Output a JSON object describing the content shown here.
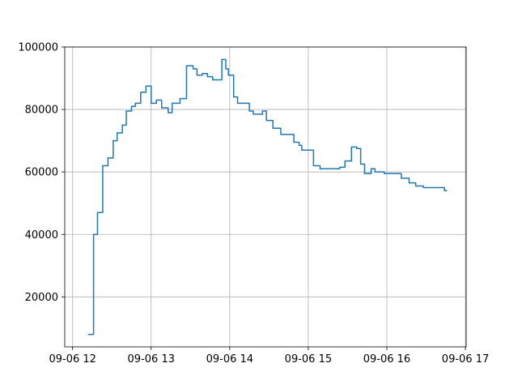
{
  "chart_data": {
    "type": "line",
    "title": "",
    "xlabel": "",
    "ylabel": "",
    "grid": true,
    "line_style": "steps-post",
    "xlim": [
      "2023-09-06 12:00",
      "2023-09-06 17:00"
    ],
    "ylim": [
      4000,
      100000
    ],
    "x_ticks": [
      "09-06 12",
      "09-06 13",
      "09-06 14",
      "09-06 15",
      "09-06 16",
      "09-06 17"
    ],
    "y_ticks": [
      "20000",
      "40000",
      "60000",
      "80000",
      "100000"
    ],
    "y_tick_values": [
      20000,
      40000,
      60000,
      80000,
      100000
    ],
    "colors": {
      "series": "#1f77b4"
    },
    "series": [
      {
        "x": [
          "2023-09-06 12:12",
          "2023-09-06 12:16",
          "2023-09-06 12:19",
          "2023-09-06 12:23",
          "2023-09-06 12:27",
          "2023-09-06 12:31",
          "2023-09-06 12:34",
          "2023-09-06 12:38",
          "2023-09-06 12:41",
          "2023-09-06 12:45",
          "2023-09-06 12:48",
          "2023-09-06 12:52",
          "2023-09-06 12:56",
          "2023-09-06 13:00",
          "2023-09-06 13:04",
          "2023-09-06 13:08",
          "2023-09-06 13:13",
          "2023-09-06 13:16",
          "2023-09-06 13:22",
          "2023-09-06 13:27",
          "2023-09-06 13:32",
          "2023-09-06 13:35",
          "2023-09-06 13:39",
          "2023-09-06 13:43",
          "2023-09-06 13:47",
          "2023-09-06 13:54",
          "2023-09-06 13:57",
          "2023-09-06 13:59",
          "2023-09-06 14:03",
          "2023-09-06 14:06",
          "2023-09-06 14:15",
          "2023-09-06 14:18",
          "2023-09-06 14:25",
          "2023-09-06 14:28",
          "2023-09-06 14:33",
          "2023-09-06 14:39",
          "2023-09-06 14:49",
          "2023-09-06 14:53",
          "2023-09-06 14:55",
          "2023-09-06 15:04",
          "2023-09-06 15:09",
          "2023-09-06 15:24",
          "2023-09-06 15:28",
          "2023-09-06 15:33",
          "2023-09-06 15:37",
          "2023-09-06 15:40",
          "2023-09-06 15:43",
          "2023-09-06 15:48",
          "2023-09-06 15:51",
          "2023-09-06 15:58",
          "2023-09-06 16:11",
          "2023-09-06 16:17",
          "2023-09-06 16:22",
          "2023-09-06 16:28",
          "2023-09-06 16:38",
          "2023-09-06 16:44"
        ],
        "values": [
          8000,
          40000,
          47000,
          62000,
          64500,
          70000,
          72500,
          75000,
          79500,
          81000,
          82000,
          85500,
          87500,
          82000,
          83000,
          80500,
          79000,
          82000,
          83500,
          94000,
          93000,
          91000,
          91500,
          90500,
          89500,
          96000,
          93000,
          91000,
          84000,
          82000,
          79500,
          78500,
          79500,
          76500,
          74000,
          72000,
          69500,
          68500,
          67000,
          62000,
          61000,
          61500,
          63500,
          68000,
          67500,
          62500,
          59500,
          61000,
          60000,
          59500,
          58000,
          56500,
          55500,
          55000,
          55000,
          54000
        ]
      }
    ]
  }
}
